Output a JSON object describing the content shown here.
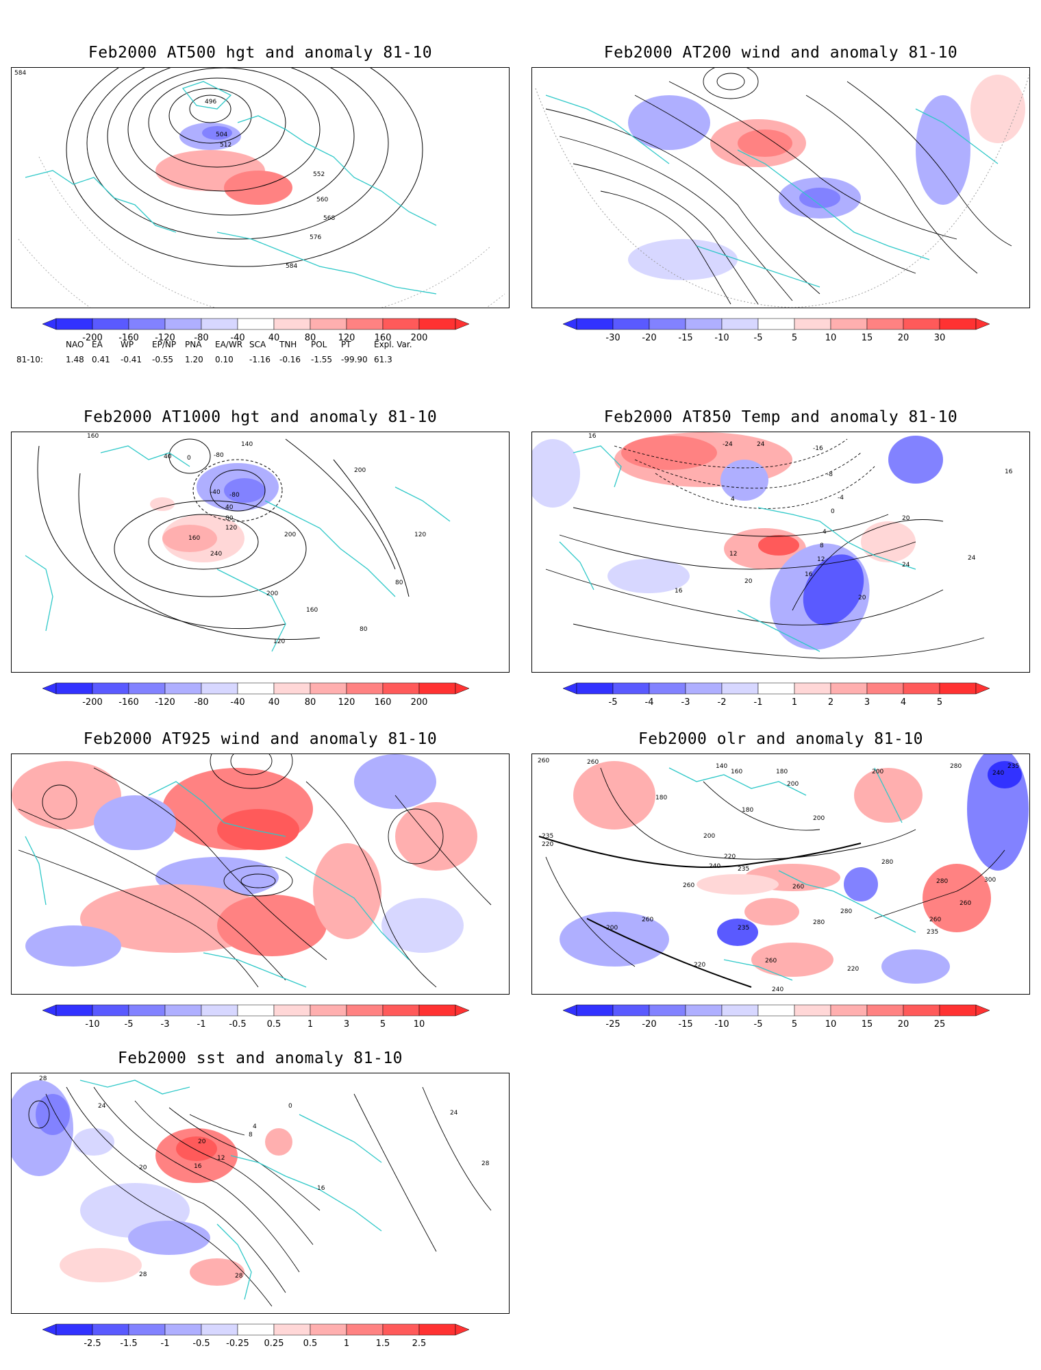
{
  "colors": {
    "blue_scale": [
      "#3232ff",
      "#5a5aff",
      "#8282ff",
      "#afafff",
      "#d7d7ff"
    ],
    "red_scale": [
      "#ffd7d7",
      "#ffafaf",
      "#ff8282",
      "#ff5a5a",
      "#ff3232"
    ],
    "coast": "#2ec8c8",
    "contour": "#000000"
  },
  "panels": [
    {
      "id": "p500",
      "title": "Feb2000 AT500 hgt and anomaly 81-10",
      "ticks": [
        "-200",
        "-160",
        "-120",
        "-80",
        "-40",
        "40",
        "80",
        "120",
        "160",
        "200"
      ],
      "labels": [
        "584",
        "496",
        "504",
        "512",
        "552",
        "560",
        "568",
        "576",
        "584"
      ]
    },
    {
      "id": "p200",
      "title": "Feb2000 AT200 wind and anomaly 81-10",
      "ticks": [
        "-30",
        "-20",
        "-15",
        "-10",
        "-5",
        "5",
        "10",
        "15",
        "20",
        "30"
      ],
      "labels": []
    },
    {
      "id": "p1000",
      "title": "Feb2000 AT1000 hgt and anomaly 81-10",
      "ticks": [
        "-200",
        "-160",
        "-120",
        "-80",
        "-40",
        "40",
        "80",
        "120",
        "160",
        "200"
      ],
      "labels": [
        "160",
        "40",
        "0",
        "-80",
        "140",
        "200",
        "-40",
        "-80",
        "40",
        "80",
        "120",
        "160",
        "240",
        "200",
        "120",
        "200",
        "160",
        "80",
        "80",
        "120"
      ]
    },
    {
      "id": "p850",
      "title": "Feb2000 AT850 Temp and anomaly 81-10",
      "ticks": [
        "-5",
        "-4",
        "-3",
        "-2",
        "-1",
        "1",
        "2",
        "3",
        "4",
        "5"
      ],
      "labels": [
        "16",
        "-24",
        "24",
        "-16",
        "-8",
        "16",
        "-4",
        "4",
        "0",
        "20",
        "4",
        "8",
        "12",
        "16",
        "12",
        "24",
        "16",
        "20",
        "20",
        "24"
      ]
    },
    {
      "id": "p925",
      "title": "Feb2000 AT925 wind and anomaly 81-10",
      "ticks": [
        "-10",
        "-5",
        "-3",
        "-1",
        "-0.5",
        "0.5",
        "1",
        "3",
        "5",
        "10"
      ],
      "labels": []
    },
    {
      "id": "polr",
      "title": "Feb2000 olr and anomaly 81-10",
      "ticks": [
        "-25",
        "-20",
        "-15",
        "-10",
        "-5",
        "5",
        "10",
        "15",
        "20",
        "25"
      ],
      "labels": [
        "260",
        "260",
        "140",
        "160",
        "180",
        "200",
        "200",
        "180",
        "280",
        "235",
        "240",
        "235",
        "220",
        "200",
        "180",
        "200",
        "220",
        "240",
        "235",
        "280",
        "260",
        "260",
        "280",
        "300",
        "260",
        "235",
        "260",
        "280",
        "200",
        "235",
        "260",
        "220",
        "260",
        "280",
        "220",
        "240"
      ]
    },
    {
      "id": "psst",
      "title": "Feb2000 sst and anomaly 81-10",
      "ticks": [
        "-2.5",
        "-1.5",
        "-1",
        "-0.5",
        "-0.25",
        "0.25",
        "0.5",
        "1",
        "1.5",
        "2.5"
      ],
      "labels": [
        "28",
        "24",
        "20",
        "0",
        "4",
        "8",
        "12",
        "16",
        "20",
        "16",
        "28",
        "28",
        "24",
        "28"
      ]
    }
  ],
  "teleconnection": {
    "headers": [
      "NAO",
      "EA",
      "WP",
      "EP/NP",
      "PNA",
      "EA/WR",
      "SCA",
      "TNH",
      "POL",
      "PT",
      "Expl. Var."
    ],
    "row_label": "81-10:",
    "values": [
      "1.48",
      "0.41",
      "-0.41",
      "-0.55",
      "1.20",
      "0.10",
      "-1.16",
      "-0.16",
      "-1.55",
      "-99.90",
      "61.3"
    ]
  }
}
